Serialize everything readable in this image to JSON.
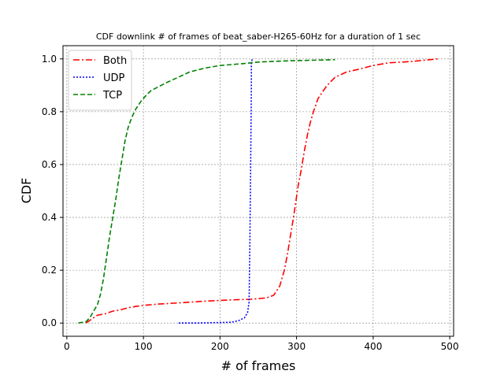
{
  "chart_data": {
    "type": "line",
    "title": "CDF downlink # of frames of beat_saber-H265-60Hz for a duration of 1 sec",
    "xlabel": "# of frames",
    "ylabel": "CDF",
    "xlim": [
      -5,
      505
    ],
    "ylim": [
      -0.05,
      1.05
    ],
    "xticks": [
      0,
      100,
      200,
      300,
      400,
      500
    ],
    "yticks": [
      0.0,
      0.2,
      0.4,
      0.6,
      0.8,
      1.0
    ],
    "xtick_labels": [
      "0",
      "100",
      "200",
      "300",
      "400",
      "500"
    ],
    "ytick_labels": [
      "0.0",
      "0.2",
      "0.4",
      "0.6",
      "0.8",
      "1.0"
    ],
    "grid": true,
    "legend_position": "top-left",
    "series": [
      {
        "name": "Both",
        "color": "#ff0000",
        "linestyle": "dashdot",
        "points": [
          [
            25,
            0.0
          ],
          [
            30,
            0.01
          ],
          [
            35,
            0.02
          ],
          [
            40,
            0.03
          ],
          [
            50,
            0.035
          ],
          [
            60,
            0.045
          ],
          [
            70,
            0.05
          ],
          [
            80,
            0.058
          ],
          [
            90,
            0.063
          ],
          [
            100,
            0.067
          ],
          [
            120,
            0.072
          ],
          [
            150,
            0.077
          ],
          [
            180,
            0.083
          ],
          [
            210,
            0.087
          ],
          [
            240,
            0.09
          ],
          [
            260,
            0.095
          ],
          [
            270,
            0.105
          ],
          [
            278,
            0.14
          ],
          [
            284,
            0.2
          ],
          [
            288,
            0.26
          ],
          [
            292,
            0.33
          ],
          [
            296,
            0.4
          ],
          [
            299,
            0.46
          ],
          [
            302,
            0.52
          ],
          [
            306,
            0.58
          ],
          [
            310,
            0.65
          ],
          [
            314,
            0.71
          ],
          [
            318,
            0.76
          ],
          [
            322,
            0.8
          ],
          [
            328,
            0.85
          ],
          [
            335,
            0.88
          ],
          [
            340,
            0.9
          ],
          [
            350,
            0.93
          ],
          [
            365,
            0.95
          ],
          [
            380,
            0.96
          ],
          [
            400,
            0.975
          ],
          [
            420,
            0.985
          ],
          [
            450,
            0.99
          ],
          [
            484,
            1.0
          ]
        ]
      },
      {
        "name": "UDP",
        "color": "#0000ff",
        "linestyle": "dotted",
        "points": [
          [
            146,
            0.0
          ],
          [
            170,
            0.0
          ],
          [
            200,
            0.002
          ],
          [
            215,
            0.003
          ],
          [
            225,
            0.01
          ],
          [
            232,
            0.02
          ],
          [
            236,
            0.04
          ],
          [
            238,
            0.08
          ],
          [
            239,
            0.3
          ],
          [
            240,
            0.6
          ],
          [
            241,
            0.9
          ],
          [
            241,
            0.98
          ],
          [
            242,
            1.0
          ]
        ]
      },
      {
        "name": "TCP",
        "color": "#008000",
        "linestyle": "dashed",
        "points": [
          [
            15,
            0.0
          ],
          [
            25,
            0.005
          ],
          [
            30,
            0.02
          ],
          [
            35,
            0.045
          ],
          [
            40,
            0.07
          ],
          [
            44,
            0.11
          ],
          [
            48,
            0.17
          ],
          [
            52,
            0.25
          ],
          [
            56,
            0.33
          ],
          [
            60,
            0.4
          ],
          [
            64,
            0.47
          ],
          [
            68,
            0.55
          ],
          [
            72,
            0.62
          ],
          [
            76,
            0.69
          ],
          [
            80,
            0.74
          ],
          [
            85,
            0.78
          ],
          [
            90,
            0.81
          ],
          [
            97,
            0.84
          ],
          [
            103,
            0.86
          ],
          [
            110,
            0.88
          ],
          [
            120,
            0.895
          ],
          [
            130,
            0.91
          ],
          [
            145,
            0.93
          ],
          [
            160,
            0.95
          ],
          [
            180,
            0.965
          ],
          [
            200,
            0.975
          ],
          [
            230,
            0.982
          ],
          [
            250,
            0.988
          ],
          [
            280,
            0.992
          ],
          [
            320,
            0.995
          ],
          [
            350,
            0.997
          ]
        ]
      }
    ]
  }
}
